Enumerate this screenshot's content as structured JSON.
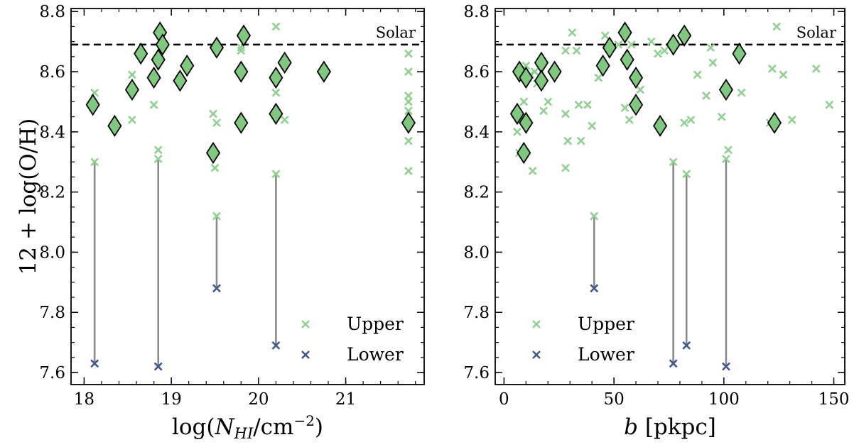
{
  "chart_data": [
    {
      "type": "scatter",
      "xlabel": "log(N_HI/cm^-2)",
      "ylabel": "12 + log(O/H)",
      "xlim": [
        17.85,
        21.9
      ],
      "ylim": [
        7.56,
        8.81
      ],
      "xticks": [
        "18",
        "19",
        "20",
        "21"
      ],
      "yticks": [
        "7.6",
        "7.8",
        "8.0",
        "8.2",
        "8.4",
        "8.6",
        "8.8"
      ],
      "reference_line": {
        "label": "Solar",
        "y": 8.69
      },
      "legend": {
        "placement": "lower-right",
        "entries": [
          "Upper",
          "Lower"
        ]
      },
      "colors": {
        "measured": "#7fc97f",
        "upper": "#8fd18f",
        "lower": "#3f5a8a",
        "link": "#8a8a8a",
        "solar": "#000000"
      },
      "series": [
        {
          "name": "",
          "marker": "diamond",
          "points": [
            [
              18.1,
              8.49
            ],
            [
              18.35,
              8.42
            ],
            [
              18.55,
              8.54
            ],
            [
              18.65,
              8.66
            ],
            [
              18.8,
              8.58
            ],
            [
              18.85,
              8.64
            ],
            [
              18.87,
              8.73
            ],
            [
              18.9,
              8.69
            ],
            [
              19.1,
              8.57
            ],
            [
              19.18,
              8.62
            ],
            [
              19.48,
              8.33
            ],
            [
              19.52,
              8.68
            ],
            [
              19.8,
              8.6
            ],
            [
              19.8,
              8.43
            ],
            [
              19.83,
              8.72
            ],
            [
              20.2,
              8.58
            ],
            [
              20.2,
              8.46
            ],
            [
              20.3,
              8.63
            ],
            [
              20.75,
              8.6
            ],
            [
              21.72,
              8.43
            ]
          ]
        },
        {
          "name": "Upper",
          "marker": "x",
          "points": [
            [
              18.12,
              8.53
            ],
            [
              18.12,
              8.3
            ],
            [
              18.55,
              8.59
            ],
            [
              18.55,
              8.44
            ],
            [
              18.8,
              8.49
            ],
            [
              18.85,
              8.34
            ],
            [
              18.85,
              8.31
            ],
            [
              19.48,
              8.46
            ],
            [
              19.5,
              8.28
            ],
            [
              19.52,
              8.43
            ],
            [
              19.52,
              8.12
            ],
            [
              19.8,
              8.67
            ],
            [
              19.8,
              8.68
            ],
            [
              20.2,
              8.75
            ],
            [
              20.2,
              8.53
            ],
            [
              20.2,
              8.26
            ],
            [
              20.3,
              8.44
            ],
            [
              21.72,
              8.66
            ],
            [
              21.72,
              8.6
            ],
            [
              21.72,
              8.52
            ],
            [
              21.72,
              8.5
            ],
            [
              21.72,
              8.47
            ],
            [
              21.72,
              8.37
            ],
            [
              21.72,
              8.27
            ]
          ]
        },
        {
          "name": "Lower",
          "marker": "x",
          "points": [
            [
              18.12,
              7.63
            ],
            [
              18.85,
              7.62
            ],
            [
              19.52,
              7.88
            ],
            [
              20.2,
              7.69
            ]
          ]
        }
      ],
      "links": [
        [
          18.12,
          8.3,
          7.63
        ],
        [
          18.85,
          8.31,
          7.62
        ],
        [
          19.52,
          8.12,
          7.88
        ],
        [
          20.2,
          8.26,
          7.69
        ]
      ]
    },
    {
      "type": "scatter",
      "xlabel": "b [pkpc]",
      "ylabel": "",
      "xlim": [
        -4,
        155
      ],
      "ylim": [
        7.56,
        8.81
      ],
      "xticks": [
        "0",
        "50",
        "100",
        "150"
      ],
      "yticks": [
        "7.6",
        "7.8",
        "8.0",
        "8.2",
        "8.4",
        "8.6",
        "8.8"
      ],
      "reference_line": {
        "label": "Solar",
        "y": 8.69
      },
      "legend": {
        "placement": "lower-center",
        "entries": [
          "Upper",
          "Lower"
        ]
      },
      "colors": {
        "measured": "#7fc97f",
        "upper": "#8fd18f",
        "lower": "#3f5a8a",
        "link": "#8a8a8a",
        "solar": "#000000"
      },
      "series": [
        {
          "name": "",
          "marker": "diamond",
          "points": [
            [
              6,
              8.46
            ],
            [
              7,
              8.6
            ],
            [
              9,
              8.33
            ],
            [
              10,
              8.58
            ],
            [
              10,
              8.43
            ],
            [
              17,
              8.63
            ],
            [
              17,
              8.57
            ],
            [
              23,
              8.6
            ],
            [
              45,
              8.62
            ],
            [
              48,
              8.68
            ],
            [
              55,
              8.73
            ],
            [
              56,
              8.64
            ],
            [
              60,
              8.58
            ],
            [
              60,
              8.49
            ],
            [
              71,
              8.42
            ],
            [
              77,
              8.69
            ],
            [
              82,
              8.72
            ],
            [
              101,
              8.54
            ],
            [
              107,
              8.66
            ],
            [
              123,
              8.43
            ]
          ]
        },
        {
          "name": "Upper",
          "marker": "x",
          "points": [
            [
              5,
              8.46
            ],
            [
              6,
              8.4
            ],
            [
              7,
              8.33
            ],
            [
              8,
              8.59
            ],
            [
              9,
              8.5
            ],
            [
              10,
              8.62
            ],
            [
              12,
              8.59
            ],
            [
              13,
              8.27
            ],
            [
              14,
              8.6
            ],
            [
              15,
              8.56
            ],
            [
              18,
              8.47
            ],
            [
              20,
              8.5
            ],
            [
              23,
              8.6
            ],
            [
              28,
              8.67
            ],
            [
              28,
              8.46
            ],
            [
              29,
              8.37
            ],
            [
              28,
              8.28
            ],
            [
              31,
              8.73
            ],
            [
              33,
              8.67
            ],
            [
              34,
              8.49
            ],
            [
              35,
              8.37
            ],
            [
              38,
              8.49
            ],
            [
              40,
              8.42
            ],
            [
              41,
              8.12
            ],
            [
              43,
              8.58
            ],
            [
              46,
              8.72
            ],
            [
              52,
              8.69
            ],
            [
              55,
              8.48
            ],
            [
              57,
              8.44
            ],
            [
              58,
              8.69
            ],
            [
              62,
              8.54
            ],
            [
              67,
              8.7
            ],
            [
              70,
              8.66
            ],
            [
              73,
              8.67
            ],
            [
              77,
              8.3
            ],
            [
              82,
              8.43
            ],
            [
              83,
              8.26
            ],
            [
              85,
              8.44
            ],
            [
              88,
              8.59
            ],
            [
              92,
              8.52
            ],
            [
              94,
              8.68
            ],
            [
              95,
              8.63
            ],
            [
              99,
              8.45
            ],
            [
              101,
              8.31
            ],
            [
              102,
              8.34
            ],
            [
              108,
              8.53
            ],
            [
              121,
              8.43
            ],
            [
              122,
              8.61
            ],
            [
              124,
              8.75
            ],
            [
              127,
              8.59
            ],
            [
              131,
              8.44
            ],
            [
              142,
              8.61
            ],
            [
              148,
              8.49
            ]
          ]
        },
        {
          "name": "Lower",
          "marker": "x",
          "points": [
            [
              41,
              7.88
            ],
            [
              77,
              7.63
            ],
            [
              83,
              7.69
            ],
            [
              101,
              7.62
            ]
          ]
        }
      ],
      "links": [
        [
          41,
          8.12,
          7.88
        ],
        [
          77,
          8.3,
          7.63
        ],
        [
          83,
          8.26,
          7.69
        ],
        [
          101,
          8.31,
          7.62
        ]
      ]
    }
  ]
}
